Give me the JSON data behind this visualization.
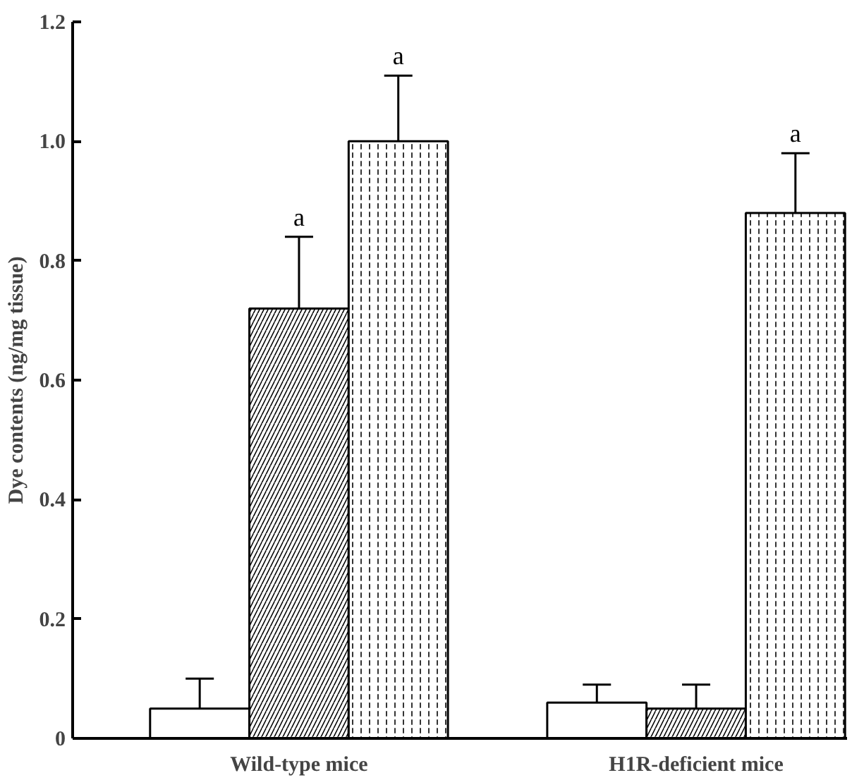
{
  "chart_data": {
    "type": "bar",
    "ylabel": "Dye contents (ng/mg tissue)",
    "categories": [
      "Wild-type mice",
      "H1R-deficient mice"
    ],
    "series": [
      {
        "color": "#ffffff",
        "values": [
          0.05,
          0.06
        ],
        "errors": [
          0.05,
          0.03
        ]
      },
      {
        "color": "#ffffff",
        "values": [
          0.72,
          0.05
        ],
        "errors": [
          0.12,
          0.04
        ]
      },
      {
        "color": "#ffffff",
        "values": [
          1.0,
          0.88
        ],
        "errors": [
          0.11,
          0.1
        ]
      }
    ],
    "ylim": [
      0,
      1.2
    ],
    "yticks": [
      0,
      0.2,
      0.4,
      0.6,
      0.8,
      {
        "value": 1,
        "label": "1.0"
      },
      {
        "value": 1.2,
        "label": "1.2"
      }
    ],
    "annotations": [
      "a",
      "a",
      "a"
    ],
    "grid": false
  }
}
